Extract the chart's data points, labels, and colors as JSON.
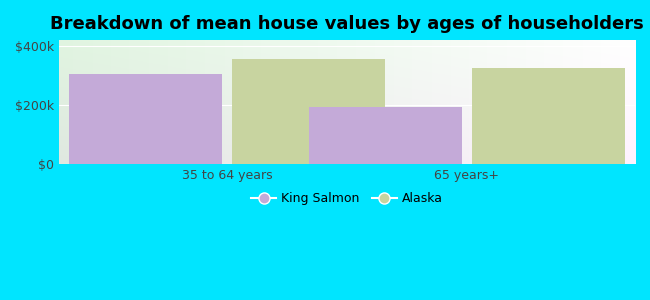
{
  "title": "Breakdown of mean house values by ages of householders",
  "categories": [
    "35 to 64 years",
    "65 years+"
  ],
  "series": {
    "King Salmon": [
      305000,
      195000
    ],
    "Alaska": [
      355000,
      325000
    ]
  },
  "bar_colors": {
    "King Salmon": "#c4aad8",
    "Alaska": "#c8d4a0"
  },
  "ylim": [
    0,
    420000
  ],
  "yticks": [
    0,
    200000,
    400000
  ],
  "ytick_labels": [
    "$0",
    "$200k",
    "$400k"
  ],
  "background_color": "#00e5ff",
  "title_fontsize": 13,
  "tick_fontsize": 9,
  "legend_fontsize": 9,
  "bar_width": 0.32,
  "group_positions": [
    0.25,
    0.75
  ]
}
